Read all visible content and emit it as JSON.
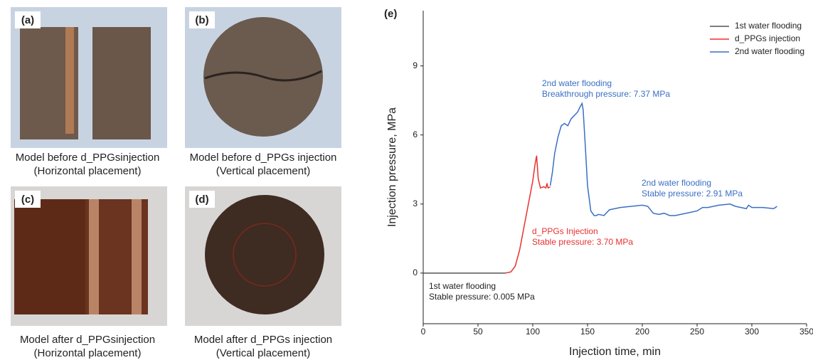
{
  "panels": [
    {
      "label": "(a)",
      "caption": [
        "Model before d_PPGsinjection",
        "(Horizontal placement)"
      ]
    },
    {
      "label": "(b)",
      "caption": [
        "Model before d_PPGs injection",
        "(Vertical placement)"
      ]
    },
    {
      "label": "(c)",
      "caption": [
        "Model after d_PPGsinjection",
        "(Horizontal placement)"
      ]
    },
    {
      "label": "(d)",
      "caption": [
        "Model after d_PPGs injection",
        "(Vertical placement)"
      ]
    }
  ],
  "chart_data": {
    "type": "line",
    "panel_label": "(e)",
    "x_label": "Injection time, min",
    "y_label": "Injection pressure, MPa",
    "xlim": [
      0,
      350
    ],
    "ylim": [
      -2.2,
      11.4
    ],
    "xticks": [
      0,
      50,
      100,
      150,
      200,
      250,
      300,
      350
    ],
    "yticks": [
      0,
      3,
      6,
      9
    ],
    "legend": "top-right",
    "series": [
      {
        "name": "1st water flooding",
        "color": "#555555",
        "x": [
          0,
          20,
          40,
          60,
          75
        ],
        "values": [
          0,
          0,
          0,
          0,
          0
        ]
      },
      {
        "name": "d_PPGs injection",
        "color": "#e8312f",
        "x": [
          75,
          80,
          84,
          88,
          92,
          96,
          100,
          102,
          103.5,
          105,
          107,
          110,
          112,
          113,
          114,
          116
        ],
        "values": [
          0,
          0.05,
          0.3,
          1.0,
          2.0,
          3.0,
          4.0,
          4.7,
          5.1,
          4.1,
          3.7,
          3.75,
          3.7,
          3.9,
          3.7,
          3.75
        ]
      },
      {
        "name": "2nd water flooding",
        "color": "#3a6fc4",
        "x": [
          116,
          118,
          120,
          123,
          126,
          129,
          132,
          135,
          137,
          139,
          141,
          143,
          145,
          146,
          148,
          150,
          153,
          156,
          158,
          160,
          165,
          170,
          175,
          180,
          190,
          200,
          205,
          210,
          215,
          220,
          225,
          230,
          240,
          250,
          255,
          260,
          270,
          280,
          285,
          290,
          295,
          297,
          300,
          310,
          320,
          323
        ],
        "values": [
          3.8,
          4.4,
          5.2,
          5.9,
          6.4,
          6.5,
          6.4,
          6.7,
          6.8,
          6.9,
          7.0,
          7.2,
          7.37,
          7.1,
          5.5,
          3.8,
          2.7,
          2.5,
          2.5,
          2.55,
          2.5,
          2.75,
          2.8,
          2.85,
          2.9,
          2.95,
          2.9,
          2.6,
          2.55,
          2.6,
          2.5,
          2.5,
          2.6,
          2.7,
          2.85,
          2.85,
          2.95,
          3.0,
          2.9,
          2.85,
          2.8,
          2.95,
          2.85,
          2.85,
          2.8,
          2.9
        ]
      }
    ],
    "annotations": [
      {
        "color": "#3a6fc4",
        "lines": [
          "2nd water flooding",
          "Breakthrough pressure: 7.37 MPa"
        ]
      },
      {
        "color": "#3a6fc4",
        "lines": [
          "2nd water flooding",
          "Stable pressure: 2.91 MPa"
        ]
      },
      {
        "color": "#e8312f",
        "lines": [
          "d_PPGs Injection",
          "Stable pressure: 3.70 MPa"
        ]
      },
      {
        "color": "#222222",
        "lines": [
          "1st water flooding",
          "Stable pressure: 0.005 MPa"
        ]
      }
    ]
  }
}
